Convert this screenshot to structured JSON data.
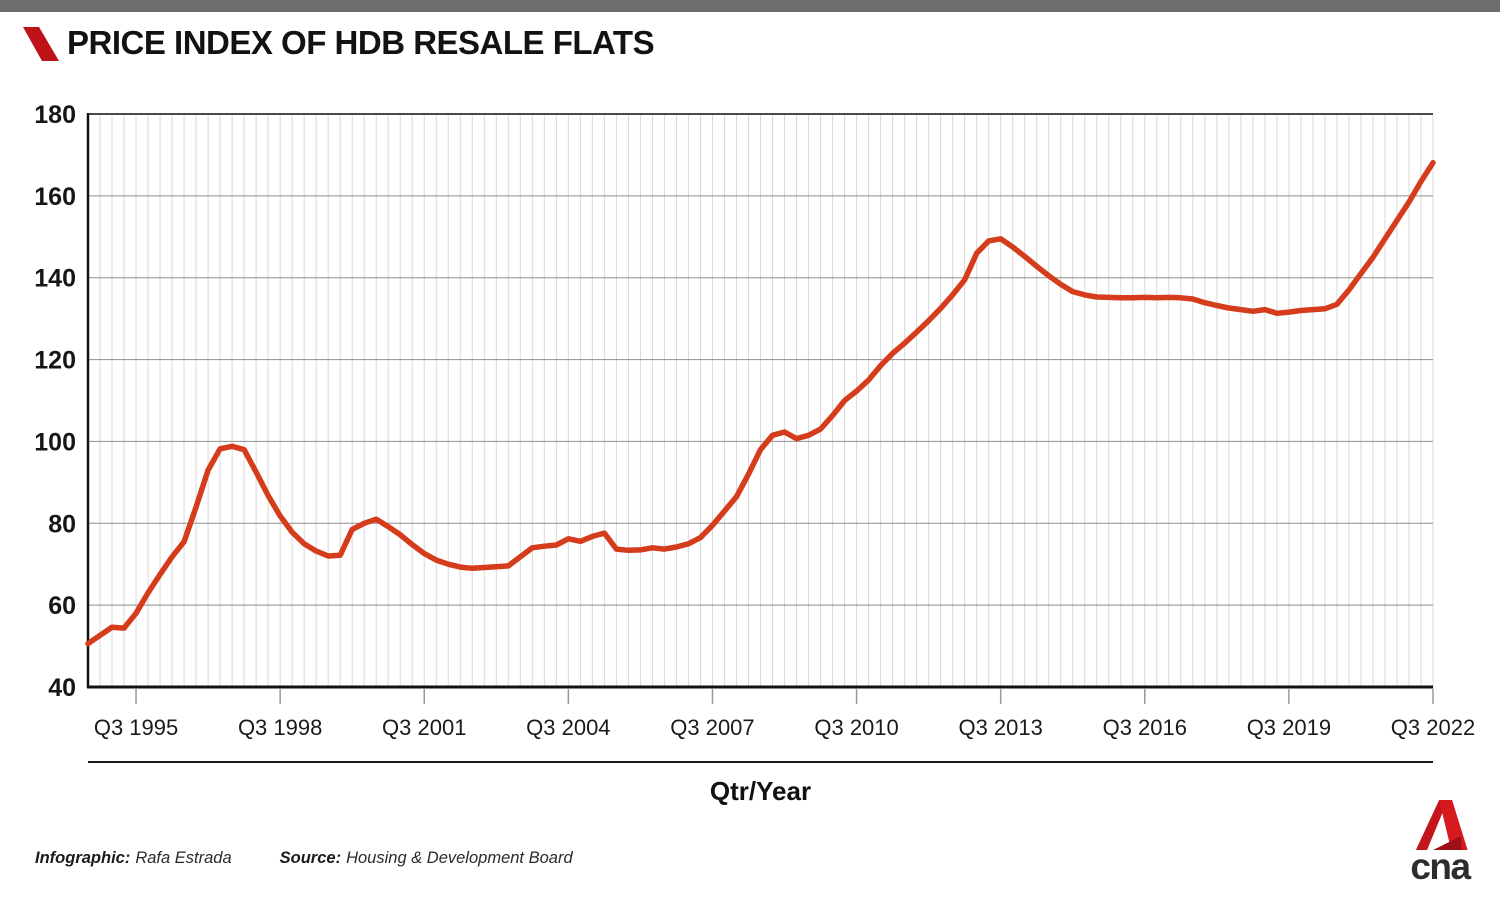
{
  "header": {
    "title": "PRICE INDEX OF HDB RESALE FLATS"
  },
  "colors": {
    "line": "#d53c1c",
    "brand_red": "#bd1218",
    "logo_red": "#d6181f",
    "logo_red_dark": "#9c0f14"
  },
  "chart_data": {
    "type": "line",
    "title": "PRICE INDEX OF HDB RESALE FLATS",
    "xlabel": "Qtr/Year",
    "ylabel": "",
    "ylim": [
      40,
      180
    ],
    "y_ticks": [
      40,
      60,
      80,
      100,
      120,
      140,
      160,
      180
    ],
    "x_tick_labels": [
      "Q3 1995",
      "Q3 1998",
      "Q3 2001",
      "Q3 2004",
      "Q3 2007",
      "Q3 2010",
      "Q3 2013",
      "Q3 2016",
      "Q3 2019",
      "Q3 2022"
    ],
    "x_tick_indices": [
      4,
      16,
      28,
      40,
      52,
      64,
      76,
      88,
      100,
      112
    ],
    "grid": "vertical line per quarter, horizontal line per 20 units",
    "legend_position": "none",
    "series": [
      {
        "name": "HDB Resale Price Index",
        "start_quarter": "1994 Q3",
        "end_quarter": "2022 Q3",
        "frequency": "quarterly",
        "values": [
          50.6,
          52.6,
          54.6,
          54.4,
          58.0,
          63.0,
          67.5,
          71.8,
          75.5,
          84.0,
          93.0,
          98.2,
          98.8,
          98.0,
          92.5,
          86.8,
          81.8,
          77.8,
          75.0,
          73.2,
          72.0,
          72.2,
          78.5,
          80.0,
          81.0,
          79.2,
          77.2,
          74.8,
          72.6,
          71.0,
          70.0,
          69.3,
          69.0,
          69.2,
          69.4,
          69.6,
          71.8,
          74.0,
          74.4,
          74.7,
          76.2,
          75.6,
          76.8,
          77.6,
          73.7,
          73.4,
          73.5,
          74.0,
          73.7,
          74.2,
          75.0,
          76.5,
          79.5,
          83.0,
          86.5,
          92.0,
          98.0,
          101.5,
          102.3,
          100.7,
          101.5,
          103.0,
          106.3,
          110.0,
          112.3,
          115.0,
          118.5,
          121.5,
          124.0,
          126.7,
          129.5,
          132.5,
          135.8,
          139.5,
          146.0,
          149.0,
          149.5,
          147.5,
          145.2,
          142.8,
          140.5,
          138.4,
          136.6,
          135.8,
          135.3,
          135.2,
          135.1,
          135.1,
          135.2,
          135.1,
          135.2,
          135.1,
          134.8,
          133.9,
          133.2,
          132.6,
          132.2,
          131.8,
          132.2,
          131.3,
          131.6,
          132.0,
          132.2,
          132.4,
          133.5,
          137.0,
          141.0,
          145.0,
          149.5,
          154.0,
          158.5,
          163.5,
          168.1
        ]
      }
    ]
  },
  "footer": {
    "infographic_label": "Infographic:",
    "infographic_value": "Rafa Estrada",
    "source_label": "Source:",
    "source_value": "Housing & Development Board"
  },
  "logo": {
    "text": "cna"
  }
}
